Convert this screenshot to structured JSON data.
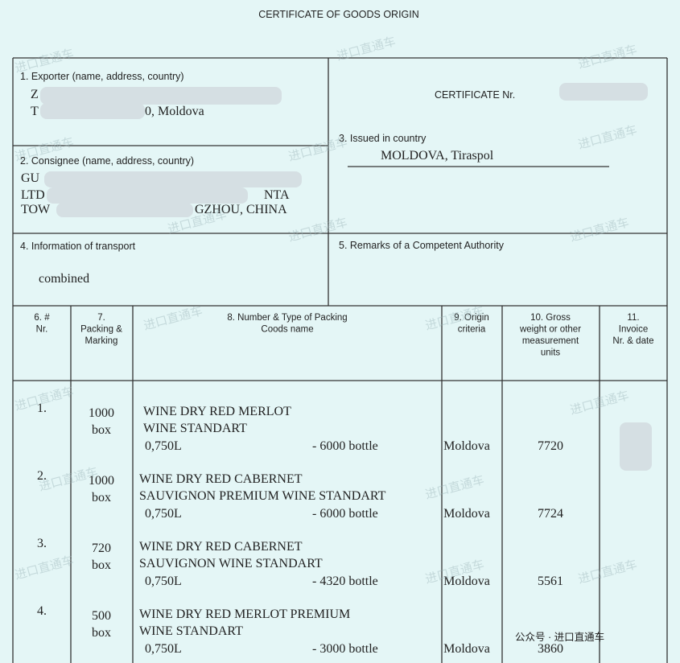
{
  "header": {
    "title": "CERTIFICATE OF GOODS ORIGIN"
  },
  "exporter": {
    "label": "1. Exporter (name, address, country)",
    "lines": [
      "Z",
      "T",
      "0, Moldova"
    ]
  },
  "consignee": {
    "label": "2. Consignee (name, address, country)",
    "lines": [
      "GU",
      "LTD",
      "NTA",
      "TOW",
      "GZHOU, CHINA"
    ]
  },
  "certificate": {
    "label": "CERTIFICATE Nr."
  },
  "issued": {
    "label": "3. Issued in country",
    "value": "MOLDOVA,  Tiraspol"
  },
  "transport": {
    "label": "4. Information of transport",
    "value": "combined"
  },
  "remarks": {
    "label": "5. Remarks of a Competent Authority"
  },
  "columns": [
    "6. # Nr.",
    "7. Packing & Marking",
    "8. Number & Type of Packing Coods name",
    "9. Origin criteria",
    "10. Gross weight or other measurement units",
    "11. Invoice Nr. & date"
  ],
  "items": [
    {
      "nr": "1.",
      "qty": "1000",
      "unit": "box",
      "desc": [
        "WINE DRY  RED  MERLOT",
        "WINE STANDART"
      ],
      "volume": "0,750L",
      "bottles": "- 6000 bottle",
      "origin": "Moldova",
      "weight": "7720"
    },
    {
      "nr": "2.",
      "qty": "1000",
      "unit": "box",
      "desc": [
        "WINE DRY  RED  CABERNET",
        "SAUVIGNON PREMIUM WINE STANDART"
      ],
      "volume": "0,750L",
      "bottles": "- 6000 bottle",
      "origin": "Moldova",
      "weight": "7724"
    },
    {
      "nr": "3.",
      "qty": "720",
      "unit": "box",
      "desc": [
        "WINE DRY  RED  CABERNET",
        "SAUVIGNON WINE STANDART"
      ],
      "volume": "0,750L",
      "bottles": "- 4320 bottle",
      "origin": "Moldova",
      "weight": "5561"
    },
    {
      "nr": "4.",
      "qty": "500",
      "unit": "box",
      "desc": [
        "WINE DRY  RED  MERLOT PREMIUM",
        "WINE STANDART"
      ],
      "volume": "0,750L",
      "bottles": "- 3000 bottle",
      "origin": "Moldova",
      "weight": "3860"
    }
  ],
  "watermark": "进口直通车",
  "footer": {
    "account": "公众号 · 进口直通车"
  }
}
